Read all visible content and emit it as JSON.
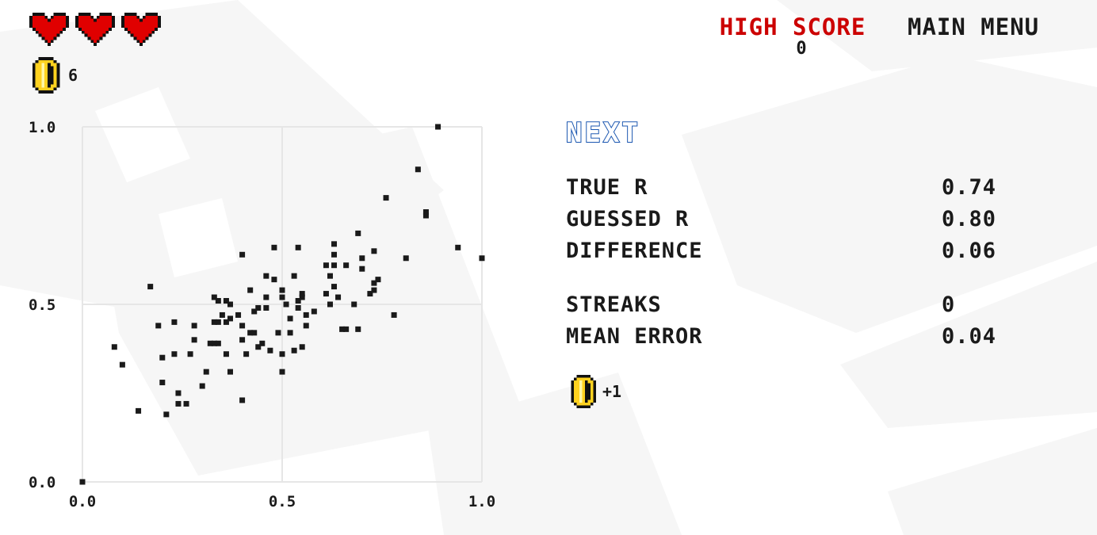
{
  "hud": {
    "lives": 3,
    "coins": "6"
  },
  "header": {
    "high_score_label": "HIGH SCORE",
    "high_score_value": "0",
    "main_menu_label": "MAIN MENU"
  },
  "panel": {
    "next_label": "NEXT",
    "stats": [
      {
        "label": "TRUE R",
        "value": "0.74"
      },
      {
        "label": "GUESSED R",
        "value": "0.80"
      },
      {
        "label": "DIFFERENCE",
        "value": "0.06"
      },
      {
        "label": "STREAKS",
        "value": "0"
      },
      {
        "label": "MEAN ERROR",
        "value": "0.04"
      }
    ],
    "reward": "+1"
  },
  "colors": {
    "heart": "#e00000",
    "coin": "#ffd21f",
    "accent_red": "#cc0000",
    "next_blue": "#1a56b0",
    "grid": "#e6e6e6",
    "point": "#1a1a1a"
  },
  "chart_data": {
    "type": "scatter",
    "title": "",
    "xlabel": "",
    "ylabel": "",
    "xlim": [
      0,
      1
    ],
    "ylim": [
      0,
      1
    ],
    "grid": true,
    "x_ticks": [
      "0.0",
      "0.5",
      "1.0"
    ],
    "y_ticks": [
      "0.0",
      "0.5",
      "1.0"
    ],
    "points": [
      [
        0.0,
        0.0
      ],
      [
        0.08,
        0.38
      ],
      [
        0.1,
        0.33
      ],
      [
        0.14,
        0.2
      ],
      [
        0.17,
        0.55
      ],
      [
        0.19,
        0.44
      ],
      [
        0.2,
        0.28
      ],
      [
        0.2,
        0.35
      ],
      [
        0.21,
        0.19
      ],
      [
        0.23,
        0.45
      ],
      [
        0.23,
        0.36
      ],
      [
        0.24,
        0.25
      ],
      [
        0.24,
        0.22
      ],
      [
        0.26,
        0.22
      ],
      [
        0.27,
        0.36
      ],
      [
        0.28,
        0.4
      ],
      [
        0.28,
        0.44
      ],
      [
        0.3,
        0.27
      ],
      [
        0.31,
        0.31
      ],
      [
        0.32,
        0.39
      ],
      [
        0.33,
        0.39
      ],
      [
        0.33,
        0.45
      ],
      [
        0.33,
        0.52
      ],
      [
        0.34,
        0.39
      ],
      [
        0.34,
        0.45
      ],
      [
        0.34,
        0.51
      ],
      [
        0.35,
        0.47
      ],
      [
        0.36,
        0.51
      ],
      [
        0.36,
        0.45
      ],
      [
        0.36,
        0.36
      ],
      [
        0.37,
        0.31
      ],
      [
        0.37,
        0.46
      ],
      [
        0.37,
        0.5
      ],
      [
        0.39,
        0.47
      ],
      [
        0.4,
        0.23
      ],
      [
        0.4,
        0.4
      ],
      [
        0.4,
        0.44
      ],
      [
        0.4,
        0.64
      ],
      [
        0.41,
        0.36
      ],
      [
        0.42,
        0.42
      ],
      [
        0.42,
        0.54
      ],
      [
        0.43,
        0.48
      ],
      [
        0.43,
        0.42
      ],
      [
        0.44,
        0.38
      ],
      [
        0.44,
        0.49
      ],
      [
        0.45,
        0.39
      ],
      [
        0.46,
        0.52
      ],
      [
        0.46,
        0.49
      ],
      [
        0.46,
        0.58
      ],
      [
        0.47,
        0.37
      ],
      [
        0.48,
        0.57
      ],
      [
        0.48,
        0.66
      ],
      [
        0.49,
        0.42
      ],
      [
        0.5,
        0.52
      ],
      [
        0.5,
        0.54
      ],
      [
        0.5,
        0.36
      ],
      [
        0.5,
        0.31
      ],
      [
        0.51,
        0.5
      ],
      [
        0.52,
        0.46
      ],
      [
        0.52,
        0.42
      ],
      [
        0.53,
        0.37
      ],
      [
        0.53,
        0.58
      ],
      [
        0.54,
        0.49
      ],
      [
        0.54,
        0.51
      ],
      [
        0.54,
        0.66
      ],
      [
        0.55,
        0.52
      ],
      [
        0.55,
        0.38
      ],
      [
        0.55,
        0.53
      ],
      [
        0.56,
        0.44
      ],
      [
        0.56,
        0.47
      ],
      [
        0.58,
        0.48
      ],
      [
        0.61,
        0.61
      ],
      [
        0.61,
        0.53
      ],
      [
        0.62,
        0.58
      ],
      [
        0.62,
        0.5
      ],
      [
        0.63,
        0.61
      ],
      [
        0.63,
        0.55
      ],
      [
        0.63,
        0.64
      ],
      [
        0.63,
        0.67
      ],
      [
        0.64,
        0.52
      ],
      [
        0.65,
        0.43
      ],
      [
        0.66,
        0.43
      ],
      [
        0.66,
        0.61
      ],
      [
        0.68,
        0.5
      ],
      [
        0.69,
        0.43
      ],
      [
        0.69,
        0.7
      ],
      [
        0.7,
        0.63
      ],
      [
        0.7,
        0.6
      ],
      [
        0.72,
        0.53
      ],
      [
        0.73,
        0.54
      ],
      [
        0.73,
        0.56
      ],
      [
        0.73,
        0.65
      ],
      [
        0.74,
        0.57
      ],
      [
        0.76,
        0.8
      ],
      [
        0.78,
        0.47
      ],
      [
        0.81,
        0.63
      ],
      [
        0.84,
        0.88
      ],
      [
        0.86,
        0.75
      ],
      [
        0.86,
        0.76
      ],
      [
        0.89,
        1.0
      ],
      [
        0.94,
        0.66
      ],
      [
        1.0,
        0.63
      ]
    ]
  }
}
